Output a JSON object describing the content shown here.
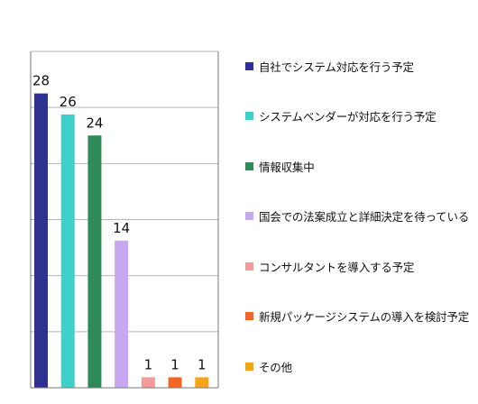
{
  "chart_data": {
    "type": "bar",
    "categories": [
      "自社でシステム対応を行う予定",
      "システムベンダーが対応を行う予定",
      "情報収集中",
      "国会での法案成立と詳細決定を待っている",
      "コンサルタントを導入する予定",
      "新規パッケージシステムの導入を検討予定",
      "その他"
    ],
    "values": [
      28,
      26,
      24,
      14,
      1,
      1,
      1
    ],
    "colors": [
      "#2e3192",
      "#3fd0cc",
      "#2e8b57",
      "#c9a6f0",
      "#f59a9a",
      "#f26522",
      "#f7a21b"
    ],
    "title": "",
    "xlabel": "",
    "ylabel": "",
    "ylim": [
      0,
      32
    ],
    "grid": true,
    "legend": "right"
  }
}
